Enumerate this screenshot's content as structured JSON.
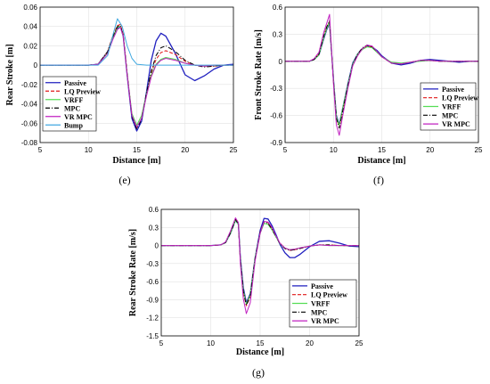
{
  "colors": {
    "Passive": "#1f1fbf",
    "LQ Preview": "#e01919",
    "VRFF": "#55dd55",
    "MPC": "#000000",
    "VR MPC": "#c020c0",
    "Bump": "#40a8e0"
  },
  "chart_data": [
    {
      "type": "line",
      "caption": "(e)",
      "xlabel": "Distance [m]",
      "ylabel": "Rear Stroke [m]",
      "xlim": [
        5,
        25
      ],
      "ylim": [
        -0.08,
        0.06
      ],
      "xticks": [
        "5",
        "10",
        "15",
        "20",
        "25"
      ],
      "yticks": [
        "-0.08",
        "-0.06",
        "-0.04",
        "-0.02",
        "0",
        "0.02",
        "0.04",
        "0.06"
      ],
      "grid": true,
      "legend": "bottom-left",
      "series": [
        {
          "name": "Passive",
          "x": [
            5,
            10,
            11,
            12,
            12.5,
            13,
            13.3,
            13.6,
            14,
            14.5,
            15,
            15.5,
            16,
            16.5,
            17,
            17.5,
            18,
            19,
            20,
            21,
            22,
            23,
            24,
            25
          ],
          "y": [
            0,
            0,
            0.001,
            0.014,
            0.028,
            0.038,
            0.04,
            0.03,
            -0.01,
            -0.055,
            -0.068,
            -0.058,
            -0.028,
            0.005,
            0.025,
            0.033,
            0.03,
            0.012,
            -0.01,
            -0.016,
            -0.011,
            -0.004,
            0,
            0.001
          ]
        },
        {
          "name": "LQ Preview",
          "x": [
            5,
            10,
            11,
            12,
            12.5,
            13,
            13.3,
            13.6,
            14,
            14.5,
            15,
            15.5,
            16,
            16.5,
            17,
            17.5,
            18,
            19,
            20,
            21,
            22,
            23,
            24,
            25
          ],
          "y": [
            0,
            0,
            0.001,
            0.014,
            0.03,
            0.041,
            0.042,
            0.032,
            -0.008,
            -0.052,
            -0.065,
            -0.055,
            -0.03,
            -0.008,
            0.006,
            0.013,
            0.015,
            0.011,
            0.004,
            0,
            -0.001,
            -0.001,
            0,
            0
          ]
        },
        {
          "name": "VRFF",
          "x": [
            5,
            10,
            11,
            12,
            12.5,
            13,
            13.3,
            13.6,
            14,
            14.5,
            15,
            15.5,
            16,
            16.5,
            17,
            17.5,
            18,
            19,
            20,
            21,
            22,
            23,
            24,
            25
          ],
          "y": [
            0,
            0,
            0.001,
            0.013,
            0.028,
            0.039,
            0.04,
            0.03,
            -0.009,
            -0.05,
            -0.062,
            -0.052,
            -0.03,
            -0.01,
            0.001,
            0.006,
            0.008,
            0.006,
            0.002,
            0,
            -0.001,
            0,
            0,
            0
          ]
        },
        {
          "name": "MPC",
          "x": [
            5,
            10,
            11,
            12,
            12.5,
            13,
            13.3,
            13.6,
            14,
            14.5,
            15,
            15.5,
            16,
            16.5,
            17,
            17.5,
            18,
            19,
            20,
            21,
            22,
            23,
            24,
            25
          ],
          "y": [
            0,
            0,
            0.001,
            0.014,
            0.029,
            0.04,
            0.041,
            0.031,
            -0.009,
            -0.053,
            -0.066,
            -0.056,
            -0.029,
            -0.006,
            0.01,
            0.018,
            0.02,
            0.014,
            0.005,
            0,
            -0.002,
            -0.001,
            0,
            0
          ]
        },
        {
          "name": "VR MPC",
          "x": [
            5,
            10,
            11,
            12,
            12.5,
            13,
            13.3,
            13.6,
            14,
            14.5,
            15,
            15.5,
            16,
            16.5,
            17,
            17.5,
            18,
            19,
            20,
            21,
            22,
            23,
            24,
            25
          ],
          "y": [
            0,
            0,
            0.001,
            0.012,
            0.026,
            0.037,
            0.039,
            0.03,
            -0.01,
            -0.052,
            -0.064,
            -0.055,
            -0.032,
            -0.012,
            0,
            0.005,
            0.007,
            0.005,
            0.002,
            0,
            -0.001,
            0,
            0,
            0
          ]
        },
        {
          "name": "Bump",
          "x": [
            5,
            11,
            12,
            12.5,
            13,
            13.5,
            14,
            14.5,
            15,
            16,
            25
          ],
          "y": [
            0,
            0,
            0.01,
            0.03,
            0.048,
            0.04,
            0.02,
            0.007,
            0.001,
            0,
            0
          ]
        }
      ]
    },
    {
      "type": "line",
      "caption": "(f)",
      "xlabel": "Distance [m]",
      "ylabel": "Front Stroke Rate [m/s]",
      "xlim": [
        5,
        25
      ],
      "ylim": [
        -0.9,
        0.6
      ],
      "xticks": [
        "5",
        "10",
        "15",
        "20",
        "25"
      ],
      "yticks": [
        "-0.9",
        "-0.6",
        "-0.3",
        "0",
        "0.3",
        "0.6"
      ],
      "grid": true,
      "legend": "bottom-right",
      "series": [
        {
          "name": "Passive",
          "x": [
            5,
            7.5,
            8,
            8.5,
            9,
            9.3,
            9.6,
            10,
            10.3,
            10.6,
            11,
            11.5,
            12,
            12.5,
            13,
            13.5,
            14,
            14.5,
            15,
            16,
            17,
            18,
            19,
            20,
            21,
            22,
            23,
            24,
            25
          ],
          "y": [
            0,
            0,
            0.02,
            0.07,
            0.25,
            0.35,
            0.42,
            -0.2,
            -0.6,
            -0.7,
            -0.5,
            -0.25,
            -0.02,
            0.08,
            0.14,
            0.17,
            0.16,
            0.12,
            0.06,
            -0.02,
            -0.04,
            -0.02,
            0.01,
            0.02,
            0.01,
            0,
            -0.01,
            0,
            0
          ]
        },
        {
          "name": "LQ Preview",
          "x": [
            5,
            7.5,
            8,
            8.5,
            9,
            9.3,
            9.6,
            10,
            10.3,
            10.6,
            11,
            11.5,
            12,
            12.5,
            13,
            13.5,
            14,
            14.5,
            15,
            16,
            17,
            18,
            19,
            20,
            21,
            22,
            23,
            24,
            25
          ],
          "y": [
            0,
            0,
            0.02,
            0.08,
            0.27,
            0.38,
            0.44,
            -0.22,
            -0.62,
            -0.73,
            -0.52,
            -0.27,
            -0.04,
            0.07,
            0.14,
            0.17,
            0.16,
            0.11,
            0.05,
            -0.02,
            -0.03,
            -0.01,
            0.01,
            0.01,
            0,
            0,
            0,
            0,
            0
          ]
        },
        {
          "name": "VRFF",
          "x": [
            5,
            7.5,
            8,
            8.5,
            9,
            9.3,
            9.6,
            10,
            10.3,
            10.6,
            11,
            11.5,
            12,
            12.5,
            13,
            13.5,
            14,
            14.5,
            15,
            16,
            17,
            18,
            19,
            20,
            21,
            22,
            23,
            24,
            25
          ],
          "y": [
            0,
            0,
            0.02,
            0.07,
            0.26,
            0.36,
            0.43,
            -0.21,
            -0.61,
            -0.71,
            -0.5,
            -0.26,
            -0.03,
            0.08,
            0.13,
            0.16,
            0.15,
            0.1,
            0.05,
            -0.01,
            -0.02,
            -0.01,
            0,
            0.01,
            0,
            0,
            0,
            0,
            0
          ]
        },
        {
          "name": "MPC",
          "x": [
            5,
            7.5,
            8,
            8.5,
            9,
            9.3,
            9.6,
            10,
            10.3,
            10.6,
            11,
            11.5,
            12,
            12.5,
            13,
            13.5,
            14,
            14.5,
            15,
            16,
            17,
            18,
            19,
            20,
            21,
            22,
            23,
            24,
            25
          ],
          "y": [
            0,
            0,
            0.02,
            0.08,
            0.28,
            0.38,
            0.45,
            -0.22,
            -0.63,
            -0.74,
            -0.53,
            -0.27,
            -0.04,
            0.08,
            0.15,
            0.18,
            0.16,
            0.11,
            0.05,
            -0.02,
            -0.03,
            -0.01,
            0.01,
            0.01,
            0,
            0,
            0,
            0,
            0
          ]
        },
        {
          "name": "VR MPC",
          "x": [
            5,
            7.5,
            8,
            8.5,
            9,
            9.3,
            9.6,
            10,
            10.3,
            10.6,
            11,
            11.5,
            12,
            12.5,
            13,
            13.5,
            14,
            14.5,
            15,
            16,
            17,
            18,
            19,
            20,
            21,
            22,
            23,
            24,
            25
          ],
          "y": [
            0,
            0,
            0.03,
            0.1,
            0.32,
            0.42,
            0.52,
            -0.25,
            -0.7,
            -0.82,
            -0.58,
            -0.3,
            -0.05,
            0.06,
            0.14,
            0.18,
            0.17,
            0.11,
            0.05,
            -0.02,
            -0.03,
            -0.01,
            0.01,
            0.01,
            0,
            0,
            0,
            0,
            0
          ]
        }
      ]
    },
    {
      "type": "line",
      "caption": "(g)",
      "xlabel": "Distance [m]",
      "ylabel": "Rear Stroke Rate [m/s]",
      "xlim": [
        5,
        25
      ],
      "ylim": [
        -1.5,
        0.6
      ],
      "xticks": [
        "5",
        "10",
        "15",
        "20",
        "25"
      ],
      "yticks": [
        "-1.5",
        "-1.2",
        "-0.9",
        "-0.6",
        "-0.3",
        "0",
        "0.3",
        "0.6"
      ],
      "grid": true,
      "legend": "bottom-right",
      "series": [
        {
          "name": "Passive",
          "x": [
            5,
            10,
            11,
            11.5,
            12,
            12.5,
            12.8,
            13,
            13.3,
            13.6,
            14,
            14.5,
            15,
            15.4,
            15.8,
            16.2,
            16.6,
            17,
            17.5,
            18,
            18.5,
            19,
            20,
            21,
            22,
            23,
            24,
            25
          ],
          "y": [
            0,
            0,
            0.01,
            0.05,
            0.2,
            0.42,
            0.35,
            -0.2,
            -0.7,
            -0.95,
            -0.8,
            -0.2,
            0.25,
            0.45,
            0.44,
            0.33,
            0.18,
            0.02,
            -0.12,
            -0.2,
            -0.2,
            -0.15,
            -0.02,
            0.07,
            0.08,
            0.04,
            -0.01,
            -0.02
          ]
        },
        {
          "name": "LQ Preview",
          "x": [
            5,
            10,
            11,
            11.5,
            12,
            12.5,
            12.8,
            13,
            13.3,
            13.6,
            14,
            14.5,
            15,
            15.4,
            15.8,
            16.2,
            16.6,
            17,
            17.5,
            18,
            18.5,
            19,
            20,
            21,
            22,
            23,
            24,
            25
          ],
          "y": [
            0,
            0,
            0.01,
            0.05,
            0.22,
            0.44,
            0.36,
            -0.25,
            -0.78,
            -1.0,
            -0.85,
            -0.22,
            0.22,
            0.4,
            0.38,
            0.28,
            0.15,
            0.04,
            -0.04,
            -0.08,
            -0.07,
            -0.05,
            -0.01,
            0.01,
            0.01,
            0,
            0,
            0
          ]
        },
        {
          "name": "VRFF",
          "x": [
            5,
            10,
            11,
            11.5,
            12,
            12.5,
            12.8,
            13,
            13.3,
            13.6,
            14,
            14.5,
            15,
            15.4,
            15.8,
            16.2,
            16.6,
            17,
            17.5,
            18,
            18.5,
            19,
            20,
            21,
            22,
            23,
            24,
            25
          ],
          "y": [
            0,
            0,
            0.01,
            0.05,
            0.2,
            0.42,
            0.35,
            -0.23,
            -0.74,
            -0.97,
            -0.82,
            -0.2,
            0.2,
            0.37,
            0.35,
            0.26,
            0.14,
            0.03,
            -0.04,
            -0.07,
            -0.06,
            -0.04,
            -0.01,
            0.01,
            0,
            0,
            0,
            0
          ]
        },
        {
          "name": "MPC",
          "x": [
            5,
            10,
            11,
            11.5,
            12,
            12.5,
            12.8,
            13,
            13.3,
            13.6,
            14,
            14.5,
            15,
            15.4,
            15.8,
            16.2,
            16.6,
            17,
            17.5,
            18,
            18.5,
            19,
            20,
            21,
            22,
            23,
            24,
            25
          ],
          "y": [
            0,
            0,
            0.01,
            0.05,
            0.21,
            0.43,
            0.36,
            -0.24,
            -0.76,
            -0.99,
            -0.84,
            -0.21,
            0.21,
            0.39,
            0.37,
            0.27,
            0.15,
            0.03,
            -0.05,
            -0.08,
            -0.07,
            -0.05,
            -0.01,
            0.01,
            0.01,
            0,
            0,
            0
          ]
        },
        {
          "name": "VR MPC",
          "x": [
            5,
            10,
            11,
            11.5,
            12,
            12.5,
            12.8,
            13,
            13.3,
            13.6,
            14,
            14.5,
            15,
            15.4,
            15.8,
            16.2,
            16.6,
            17,
            17.5,
            18,
            18.5,
            19,
            20,
            21,
            22,
            23,
            24,
            25
          ],
          "y": [
            0,
            0,
            0.01,
            0.06,
            0.24,
            0.46,
            0.38,
            -0.3,
            -0.88,
            -1.13,
            -0.95,
            -0.25,
            0.2,
            0.4,
            0.39,
            0.3,
            0.16,
            0.04,
            -0.04,
            -0.07,
            -0.06,
            -0.04,
            -0.01,
            0.01,
            0,
            0,
            0,
            0
          ]
        }
      ]
    }
  ]
}
